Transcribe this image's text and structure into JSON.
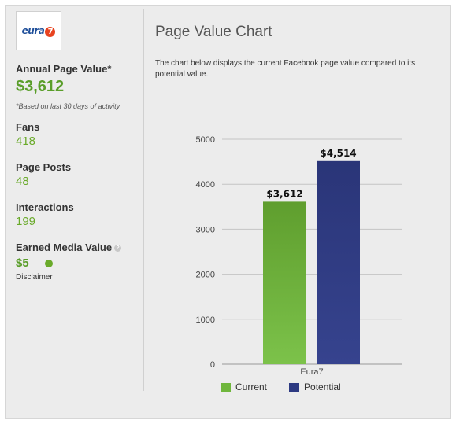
{
  "logo": {
    "text": "eura",
    "badge": "7"
  },
  "sidebar": {
    "annual_label": "Annual Page Value*",
    "annual_value": "$3,612",
    "annual_note": "*Based on last 30 days of activity",
    "stats": [
      {
        "label": "Fans",
        "value": "418"
      },
      {
        "label": "Page Posts",
        "value": "48"
      },
      {
        "label": "Interactions",
        "value": "199"
      }
    ],
    "emv_label": "Earned Media Value",
    "emv_help": "?",
    "emv_value": "$5",
    "emv_slider_fraction": 0.12,
    "disclaimer": "Disclaimer"
  },
  "main": {
    "title": "Page Value Chart",
    "description": "The chart below displays the current Facebook page value compared to its potential value."
  },
  "colors": {
    "current": "#6fb63c",
    "potential": "#2d3a82",
    "accent": "#5a9e2a"
  },
  "chart_data": {
    "type": "bar",
    "categories": [
      "Eura7"
    ],
    "series": [
      {
        "name": "Current",
        "values": [
          3612
        ],
        "label": "$3,612"
      },
      {
        "name": "Potential",
        "values": [
          4514
        ],
        "label": "$4,514"
      }
    ],
    "yticks": [
      0,
      1000,
      2000,
      3000,
      4000,
      5000
    ],
    "ylim": [
      0,
      5000
    ],
    "grid": true,
    "legend": "bottom"
  }
}
